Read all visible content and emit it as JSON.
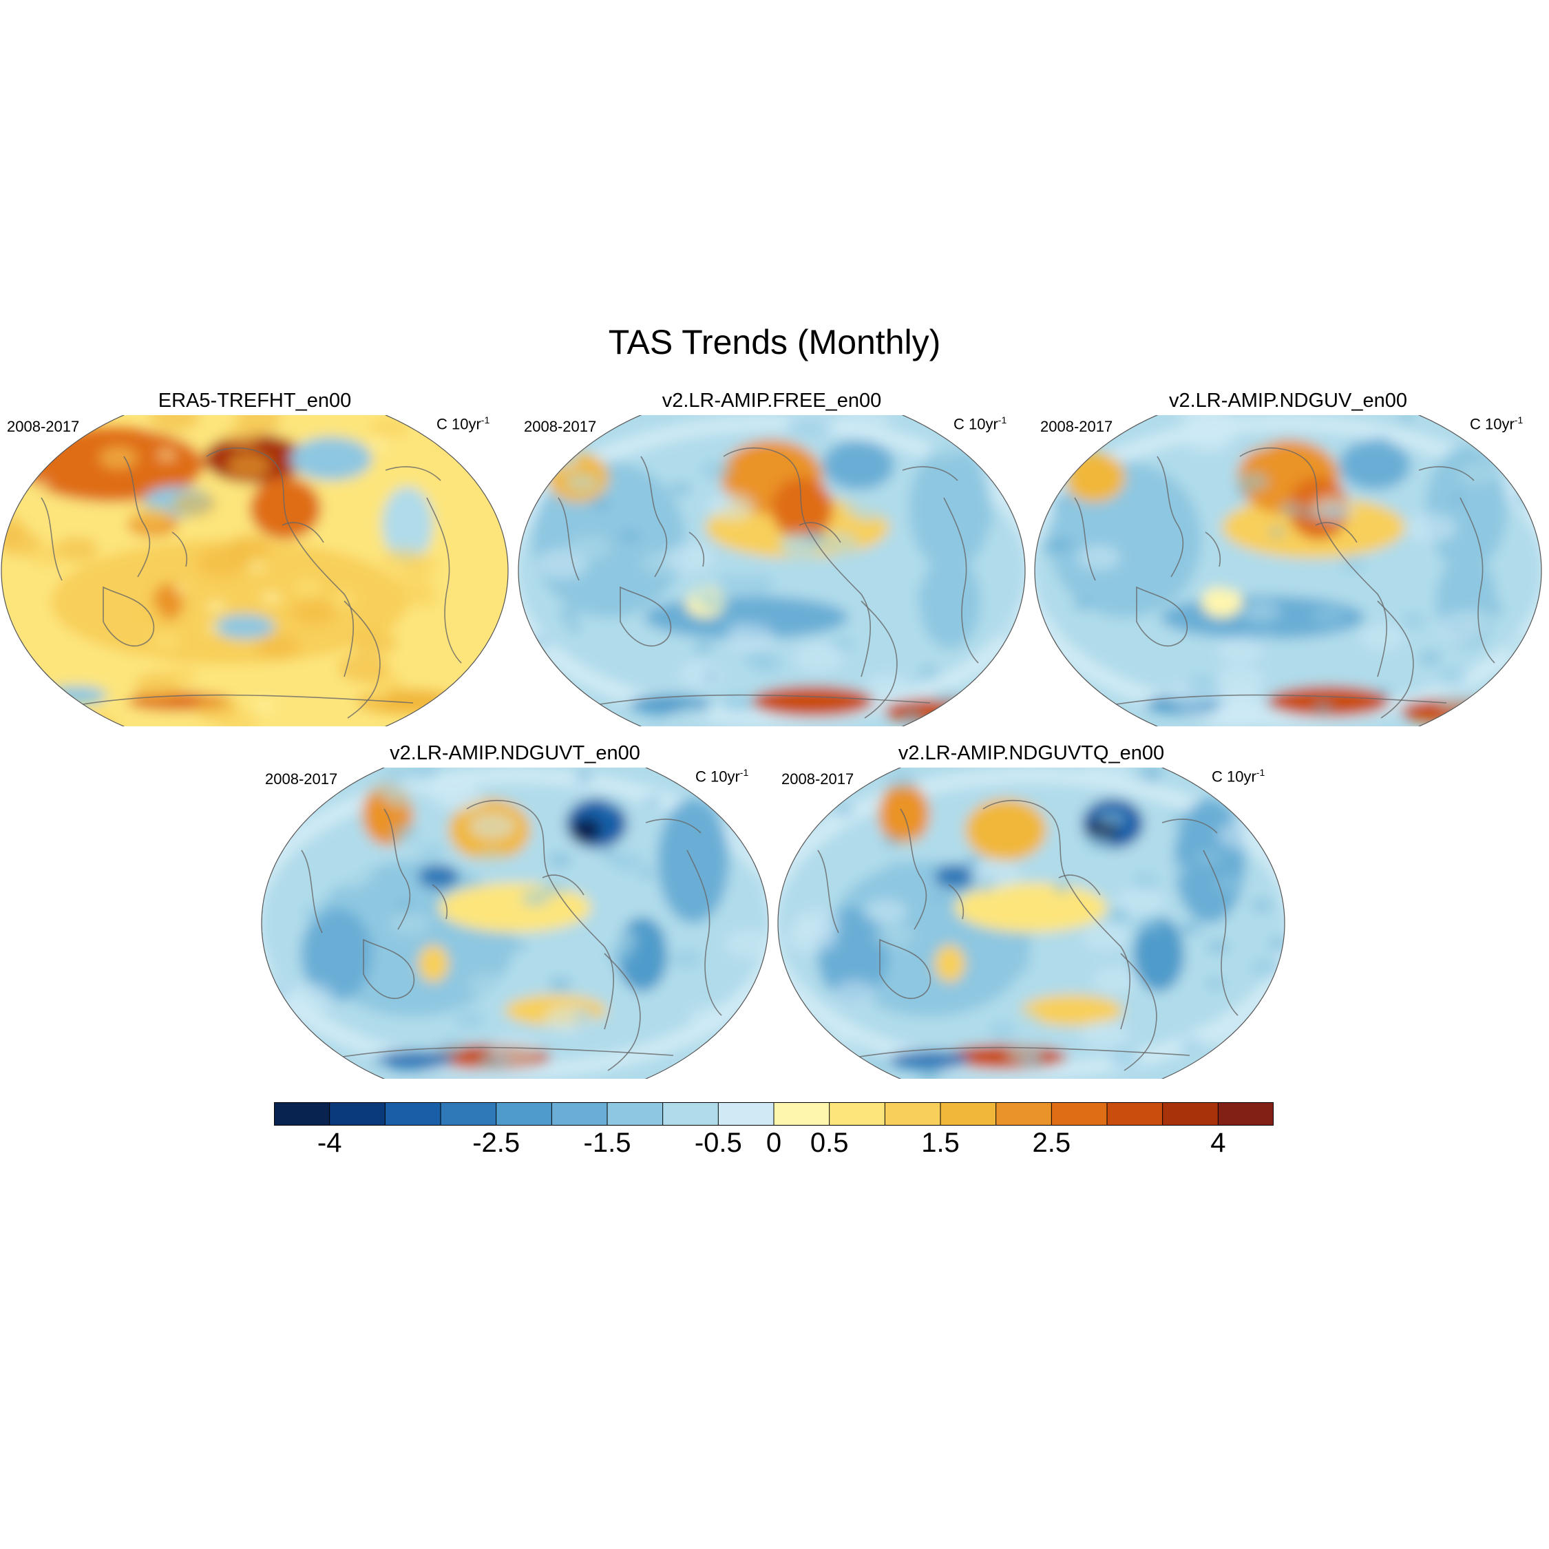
{
  "figure": {
    "title": "TAS Trends (Monthly)",
    "period": "2008-2017",
    "units_base": "C 10yr",
    "units_exp": "-1"
  },
  "panels": [
    {
      "title": "ERA5-TREFHT_en00",
      "anomaly": "warm"
    },
    {
      "title": "v2.LR-AMIP.FREE_en00",
      "anomaly": "mixed"
    },
    {
      "title": "v2.LR-AMIP.NDGUV_en00",
      "anomaly": "mixed"
    },
    {
      "title": "v2.LR-AMIP.NDGUVT_en00",
      "anomaly": "cool"
    },
    {
      "title": "v2.LR-AMIP.NDGUVTQ_en00",
      "anomaly": "cool"
    }
  ],
  "colorbar": {
    "colors": [
      "#08234f",
      "#0b3a7a",
      "#185fa8",
      "#3079b8",
      "#4f9bcb",
      "#6aaed6",
      "#8ec7e1",
      "#b0dbea",
      "#cfeaf5",
      "#fff6ae",
      "#fde57c",
      "#f8cf5a",
      "#f1b73a",
      "#ea9328",
      "#df6d15",
      "#c94d0c",
      "#a8330a",
      "#822016"
    ],
    "tick_labels": [
      "-4",
      "-2.5",
      "-1.5",
      "-0.5",
      "0",
      "0.5",
      "1.5",
      "2.5",
      "4"
    ]
  },
  "chart_data": {
    "type": "heatmap",
    "title": "TAS Trends (Monthly)",
    "variable": "TAS trend",
    "units": "C 10yr^-1",
    "period": "2008-2017",
    "levels": [
      -4,
      -3.5,
      -3,
      -2.5,
      -2,
      -1.5,
      -1,
      -0.5,
      0,
      0.5,
      1,
      1.5,
      2,
      2.5,
      3,
      3.5,
      4
    ],
    "colorbar_ticks": [
      -4,
      -2.5,
      -1.5,
      -0.5,
      0,
      0.5,
      1.5,
      2.5,
      4
    ],
    "panels": [
      "ERA5-TREFHT_en00",
      "v2.LR-AMIP.FREE_en00",
      "v2.LR-AMIP.NDGUV_en00",
      "v2.LR-AMIP.NDGUVT_en00",
      "v2.LR-AMIP.NDGUVTQ_en00"
    ]
  }
}
